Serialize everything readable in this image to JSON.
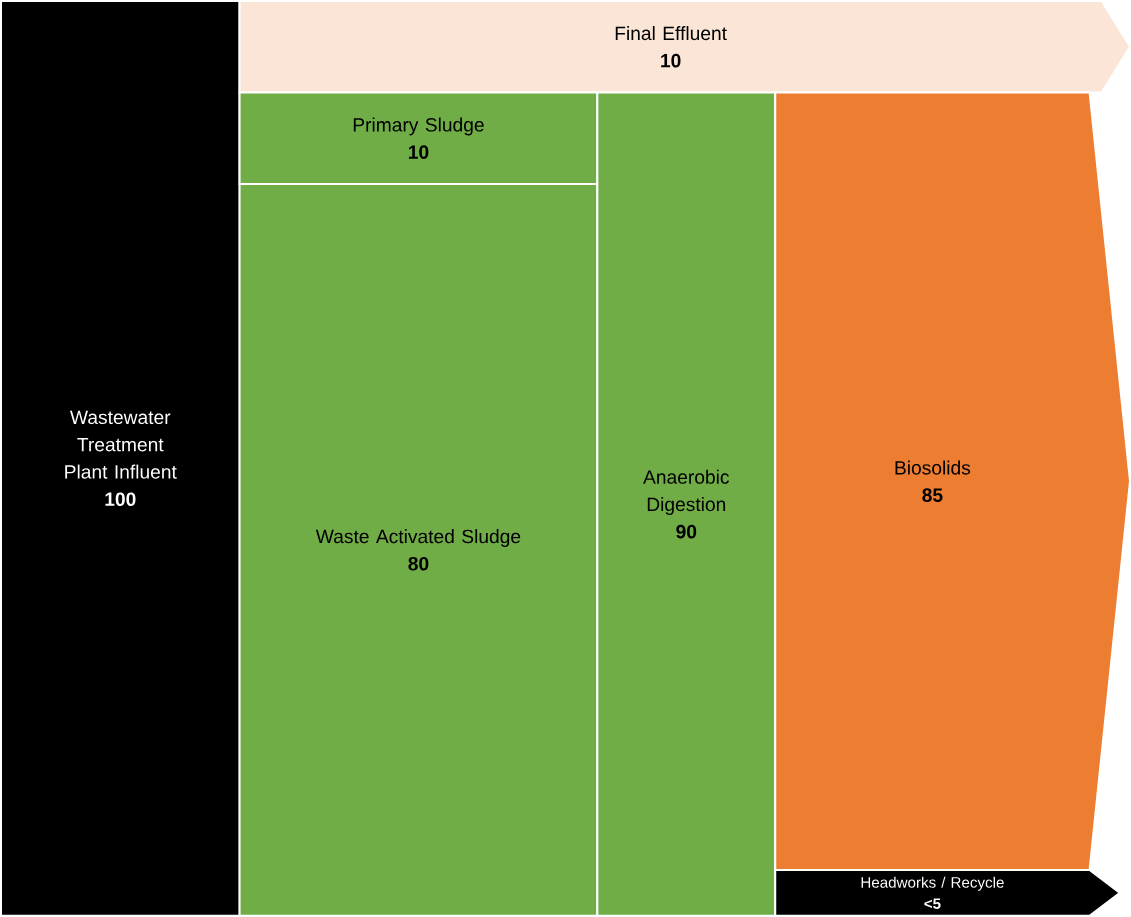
{
  "chart_data": {
    "type": "other",
    "categories": [
      "Wastewater Treatment Plant Influent",
      "Final Effluent",
      "Primary Sludge",
      "Waste Activated Sludge",
      "Anaerobic Digestion",
      "Biosolids",
      "Headworks / Recycle"
    ],
    "values": [
      100,
      10,
      10,
      80,
      90,
      85,
      null
    ],
    "value_labels": [
      "100",
      "10",
      "10",
      "80",
      "90",
      "85",
      "<5"
    ],
    "data_labels": true,
    "colors": [
      "#000000",
      "#fbe5d6",
      "#70ad47",
      "#70ad47",
      "#70ad47",
      "#ed7d31",
      "#000000"
    ]
  }
}
